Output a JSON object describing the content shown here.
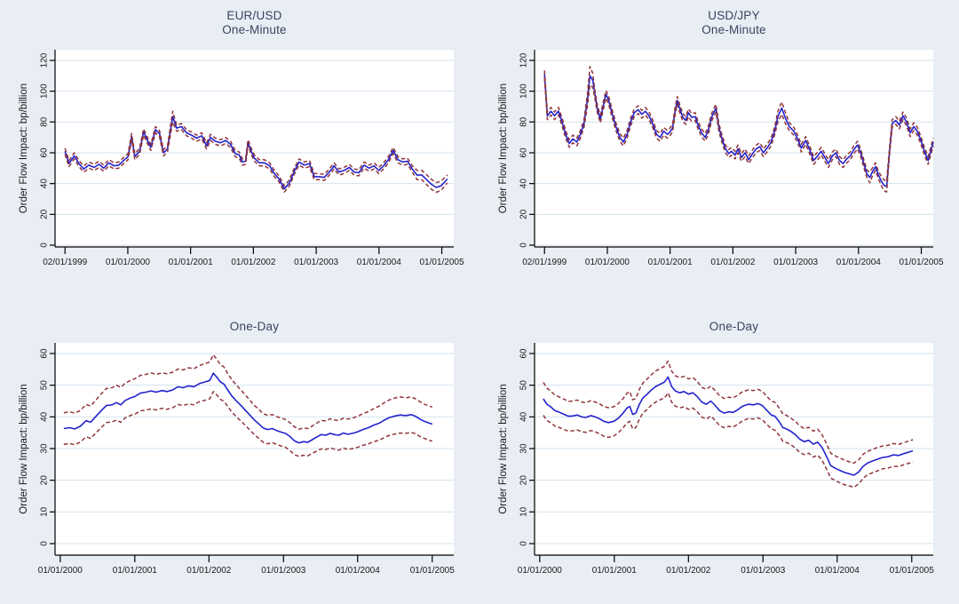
{
  "figure": {
    "name": "Order Flow Impact 2x2 time-series figure",
    "background_color": "#e8eef4",
    "plot_background_color": "#ffffff",
    "grid_color": "#d3e2ef",
    "axis_color": "#000000",
    "title_color": "#39455e",
    "tick_label_color": "#1a1a1a"
  },
  "chart_data": [
    {
      "id": "eur-usd-one-minute",
      "type": "line",
      "title": "EUR/USD",
      "subtitle": "One-Minute",
      "ylabel": "Order Flow Impact: bp/billion",
      "xlabel": "",
      "ylim": [
        0,
        120
      ],
      "yticks": [
        0,
        20,
        40,
        60,
        80,
        100,
        120
      ],
      "grid": "horizontal",
      "legend": "none",
      "xticks": {
        "fracs": [
          0.025,
          0.1825,
          0.34,
          0.4975,
          0.655,
          0.8125,
          0.97
        ],
        "labels": [
          "02/01/1999",
          "01/01/2000",
          "01/01/2001",
          "01/01/2002",
          "01/01/2003",
          "01/01/2004",
          "01/01/2005"
        ]
      },
      "estimate_color": "#2222cc",
      "estimate_style": "solid",
      "band_color": "#90353b",
      "band_style": "dashed",
      "x": [
        0.025,
        0.035,
        0.048,
        0.06,
        0.072,
        0.085,
        0.098,
        0.11,
        0.122,
        0.135,
        0.148,
        0.16,
        0.172,
        0.183,
        0.192,
        0.2,
        0.212,
        0.222,
        0.23,
        0.24,
        0.252,
        0.262,
        0.272,
        0.282,
        0.295,
        0.305,
        0.317,
        0.33,
        0.342,
        0.355,
        0.368,
        0.38,
        0.39,
        0.402,
        0.415,
        0.428,
        0.44,
        0.452,
        0.462,
        0.47,
        0.478,
        0.484,
        0.492,
        0.5,
        0.512,
        0.525,
        0.538,
        0.55,
        0.562,
        0.575,
        0.588,
        0.6,
        0.612,
        0.625,
        0.638,
        0.65,
        0.662,
        0.675,
        0.688,
        0.7,
        0.712,
        0.725,
        0.738,
        0.75,
        0.762,
        0.775,
        0.788,
        0.8,
        0.812,
        0.824,
        0.836,
        0.848,
        0.86,
        0.872,
        0.884,
        0.896,
        0.908,
        0.92,
        0.932,
        0.944,
        0.956,
        0.968,
        0.984
      ],
      "estimate": [
        61,
        53,
        58,
        53,
        49.5,
        52,
        50.5,
        52.5,
        50,
        53.5,
        51.5,
        52,
        55,
        57.5,
        70.5,
        57.5,
        61,
        73.5,
        69,
        63.5,
        75,
        72.5,
        60,
        62.5,
        83.5,
        76,
        77,
        73,
        71.5,
        69.5,
        71,
        64.5,
        70,
        67.5,
        66.5,
        68,
        65.5,
        59.5,
        58.5,
        54,
        54.5,
        66.5,
        61,
        56.5,
        53.5,
        53.5,
        51.5,
        46.5,
        43,
        36.5,
        40.5,
        48,
        54,
        52,
        53,
        44.5,
        44.5,
        44,
        47.5,
        51.5,
        47.5,
        48.5,
        50.5,
        47.5,
        47,
        52,
        50,
        51.5,
        48.5,
        51.5,
        55.5,
        61.5,
        55.5,
        54,
        54.5,
        49.5,
        45.5,
        45.5,
        42.5,
        39.5,
        37.5,
        38.5,
        43
      ],
      "ci_halfwidth": 2,
      "ci_overrides_by_x": {
        "0.295": 3.5,
        "0.908": 3,
        "0.92": 3,
        "0.932": 3.2,
        "0.944": 3.2,
        "0.956": 3.2,
        "0.968": 3,
        "0.984": 2.5
      }
    },
    {
      "id": "usd-jpy-one-minute",
      "type": "line",
      "title": "USD/JPY",
      "subtitle": "One-Minute",
      "ylabel": "Order Flow Impact: bp/billion",
      "xlabel": "",
      "ylim": [
        0,
        120
      ],
      "yticks": [
        0,
        20,
        40,
        60,
        80,
        100,
        120
      ],
      "grid": "horizontal",
      "legend": "none",
      "xticks": {
        "fracs": [
          0.025,
          0.1825,
          0.34,
          0.4975,
          0.655,
          0.8125,
          0.97
        ],
        "labels": [
          "02/01/1999",
          "01/01/2000",
          "01/01/2001",
          "01/01/2002",
          "01/01/2003",
          "01/01/2004",
          "01/01/2005"
        ]
      },
      "estimate_color": "#2222cc",
      "estimate_style": "solid",
      "band_color": "#90353b",
      "band_style": "dashed",
      "x": [
        0.025,
        0.032,
        0.041,
        0.05,
        0.06,
        0.069,
        0.078,
        0.087,
        0.096,
        0.106,
        0.115,
        0.124,
        0.133,
        0.139,
        0.146,
        0.152,
        0.158,
        0.165,
        0.172,
        0.179,
        0.186,
        0.195,
        0.204,
        0.214,
        0.223,
        0.232,
        0.241,
        0.25,
        0.26,
        0.269,
        0.278,
        0.287,
        0.296,
        0.306,
        0.315,
        0.324,
        0.333,
        0.338,
        0.346,
        0.352,
        0.358,
        0.365,
        0.372,
        0.379,
        0.386,
        0.394,
        0.403,
        0.41,
        0.419,
        0.428,
        0.435,
        0.444,
        0.451,
        0.455,
        0.462,
        0.469,
        0.478,
        0.487,
        0.494,
        0.503,
        0.51,
        0.519,
        0.528,
        0.537,
        0.547,
        0.556,
        0.565,
        0.574,
        0.583,
        0.593,
        0.602,
        0.611,
        0.62,
        0.63,
        0.639,
        0.65,
        0.66,
        0.669,
        0.68,
        0.69,
        0.7,
        0.71,
        0.719,
        0.728,
        0.737,
        0.747,
        0.756,
        0.765,
        0.774,
        0.783,
        0.792,
        0.801,
        0.81,
        0.818,
        0.827,
        0.834,
        0.841,
        0.848,
        0.855,
        0.862,
        0.869,
        0.876,
        0.883,
        0.89,
        0.897,
        0.906,
        0.915,
        0.924,
        0.933,
        0.942,
        0.951,
        0.96,
        0.969,
        0.978,
        0.987,
        1.0
      ],
      "estimate": [
        111,
        84,
        87,
        84,
        87,
        80,
        72,
        66,
        69,
        67,
        72,
        79,
        95,
        110,
        107,
        97,
        88,
        82,
        90,
        98,
        94,
        85,
        77,
        70,
        67,
        72,
        80,
        86,
        88,
        85,
        87,
        84,
        79,
        72,
        70,
        74,
        72,
        73,
        76,
        86,
        94,
        88,
        83,
        81,
        86,
        83,
        83.5,
        78,
        73,
        70,
        74,
        83,
        87,
        89,
        77,
        70,
        63,
        59.5,
        61,
        58.5,
        62.5,
        57,
        60,
        55.5,
        59.5,
        62.5,
        64,
        60,
        63,
        67,
        74,
        84,
        89,
        82,
        77,
        74,
        69,
        63,
        68,
        62,
        55,
        58,
        61,
        57,
        53,
        58,
        60,
        55,
        53,
        56,
        58,
        62,
        65,
        60,
        52,
        46,
        44,
        48,
        51,
        46,
        42,
        39,
        38,
        60,
        79,
        81,
        78,
        84,
        80,
        73,
        77,
        74,
        68,
        61,
        55,
        67
      ],
      "ci_halfwidth": 2.5,
      "ci_overrides_by_x": {
        "0.133": 4,
        "0.139": 6,
        "0.146": 4.5,
        "0.611": 3.5,
        "0.62": 4,
        "0.63": 3.5,
        "0.841": 3.5,
        "0.869": 3,
        "0.876": 3.5,
        "0.883": 3.5
      }
    },
    {
      "id": "eur-usd-one-day",
      "type": "line",
      "title": "One-Day",
      "subtitle": null,
      "ylabel": "Order Flow Impact: bp/billion",
      "xlabel": "",
      "ylim": [
        0,
        60
      ],
      "yticks": [
        0,
        10,
        20,
        30,
        40,
        50,
        60
      ],
      "grid": "horizontal",
      "legend": "none",
      "xticks": {
        "fracs": [
          0.013,
          0.2,
          0.386,
          0.573,
          0.759,
          0.946
        ],
        "labels": [
          "01/01/2000",
          "01/01/2001",
          "01/01/2002",
          "01/01/2003",
          "01/01/2004",
          "01/01/2005"
        ]
      },
      "estimate_color": "#2222cc",
      "estimate_style": "solid",
      "band_color": "#90353b",
      "band_style": "dashed",
      "x": [
        0.022,
        0.036,
        0.049,
        0.063,
        0.078,
        0.089,
        0.103,
        0.116,
        0.129,
        0.143,
        0.154,
        0.165,
        0.176,
        0.19,
        0.201,
        0.214,
        0.228,
        0.241,
        0.254,
        0.268,
        0.281,
        0.295,
        0.308,
        0.321,
        0.335,
        0.348,
        0.362,
        0.375,
        0.388,
        0.397,
        0.406,
        0.415,
        0.424,
        0.433,
        0.444,
        0.455,
        0.467,
        0.478,
        0.489,
        0.5,
        0.511,
        0.522,
        0.533,
        0.545,
        0.556,
        0.567,
        0.578,
        0.589,
        0.6,
        0.612,
        0.623,
        0.634,
        0.645,
        0.656,
        0.667,
        0.679,
        0.69,
        0.701,
        0.712,
        0.723,
        0.734,
        0.746,
        0.759,
        0.772,
        0.786,
        0.799,
        0.813,
        0.826,
        0.839,
        0.853,
        0.866,
        0.879,
        0.893,
        0.904,
        0.915,
        0.926,
        0.935,
        0.946
      ],
      "estimate": [
        36.3,
        36.6,
        36.2,
        37,
        38.8,
        38.3,
        40.2,
        42,
        43.6,
        43.8,
        44.5,
        43.8,
        45.2,
        46,
        46.5,
        47.5,
        47.8,
        48.2,
        47.8,
        48.3,
        48,
        48.5,
        49.5,
        49.2,
        49.8,
        49.5,
        50.5,
        51,
        51.5,
        53.8,
        52.5,
        51,
        50.3,
        48.5,
        46.5,
        45,
        43.5,
        42,
        40.5,
        39,
        37.8,
        36.5,
        36,
        36.3,
        35.7,
        35.2,
        34.8,
        33.8,
        32.5,
        31.8,
        32.2,
        32,
        32.8,
        33.6,
        34.4,
        34.2,
        34.8,
        34.4,
        34.2,
        34.9,
        34.5,
        34.8,
        35.3,
        36,
        36.6,
        37.4,
        38,
        39,
        39.8,
        40.3,
        40.6,
        40.4,
        40.7,
        40.2,
        39.3,
        38.6,
        38.2,
        37.7
      ],
      "ci_halfwidth": [
        5,
        5,
        5,
        5,
        5.1,
        5.1,
        5.2,
        5.3,
        5.4,
        5.4,
        5.5,
        5.5,
        5.5,
        5.5,
        5.6,
        5.6,
        5.6,
        5.7,
        5.6,
        5.6,
        5.6,
        5.6,
        5.6,
        5.6,
        5.7,
        5.7,
        5.7,
        5.8,
        5.8,
        5.8,
        5.6,
        5.5,
        5.4,
        5.2,
        5.1,
        5,
        4.9,
        4.8,
        4.7,
        4.6,
        4.6,
        4.5,
        4.5,
        4.4,
        4.4,
        4.4,
        4.4,
        4.4,
        4.4,
        4.3,
        4.3,
        4.3,
        4.3,
        4.4,
        4.5,
        4.5,
        4.6,
        4.6,
        4.7,
        4.7,
        4.8,
        4.8,
        4.9,
        5,
        5.1,
        5.2,
        5.4,
        5.5,
        5.6,
        5.7,
        5.7,
        5.6,
        5.6,
        5.5,
        5.5,
        5.4,
        5.4,
        5.4
      ]
    },
    {
      "id": "usd-jpy-one-day",
      "type": "line",
      "title": "One-Day",
      "subtitle": null,
      "ylabel": "Order Flow Impact: bp/billion",
      "xlabel": "",
      "ylim": [
        0,
        60
      ],
      "yticks": [
        0,
        10,
        20,
        30,
        40,
        50,
        60
      ],
      "grid": "horizontal",
      "legend": "none",
      "xticks": {
        "fracs": [
          0.013,
          0.2,
          0.386,
          0.573,
          0.759,
          0.946
        ],
        "labels": [
          "01/01/2000",
          "01/01/2001",
          "01/01/2002",
          "01/01/2003",
          "01/01/2004",
          "01/01/2005"
        ]
      },
      "estimate_color": "#2222cc",
      "estimate_style": "solid",
      "band_color": "#90353b",
      "band_style": "dashed",
      "x": [
        0.022,
        0.031,
        0.04,
        0.051,
        0.063,
        0.074,
        0.085,
        0.096,
        0.107,
        0.118,
        0.129,
        0.141,
        0.152,
        0.163,
        0.174,
        0.185,
        0.199,
        0.21,
        0.221,
        0.232,
        0.239,
        0.246,
        0.254,
        0.263,
        0.272,
        0.281,
        0.292,
        0.304,
        0.315,
        0.326,
        0.335,
        0.344,
        0.353,
        0.364,
        0.375,
        0.386,
        0.397,
        0.408,
        0.42,
        0.431,
        0.442,
        0.453,
        0.464,
        0.475,
        0.487,
        0.498,
        0.509,
        0.522,
        0.536,
        0.549,
        0.56,
        0.571,
        0.583,
        0.594,
        0.603,
        0.614,
        0.623,
        0.632,
        0.643,
        0.654,
        0.665,
        0.676,
        0.688,
        0.699,
        0.71,
        0.721,
        0.732,
        0.743,
        0.757,
        0.768,
        0.779,
        0.79,
        0.801,
        0.813,
        0.824,
        0.835,
        0.846,
        0.859,
        0.873,
        0.886,
        0.9,
        0.913,
        0.926,
        0.937,
        0.949
      ],
      "estimate": [
        45.7,
        44,
        43.2,
        42,
        41.4,
        40.8,
        40.2,
        40.3,
        40.6,
        40,
        39.8,
        40.4,
        40,
        39.4,
        38.6,
        38.2,
        38.6,
        39.6,
        41,
        42.8,
        43.3,
        40.8,
        41.2,
        44,
        46,
        47,
        48.4,
        49.6,
        50.3,
        51,
        52.6,
        49.5,
        48.2,
        47.6,
        48,
        47.2,
        47.6,
        46.4,
        44.6,
        44,
        45,
        43.6,
        42,
        41.2,
        41.6,
        41.4,
        42.2,
        43.4,
        44,
        43.8,
        44.2,
        43.6,
        42,
        40.6,
        40.2,
        38.4,
        36.6,
        36.2,
        35.4,
        34.4,
        33,
        32.2,
        32.6,
        31.4,
        32,
        30.4,
        27.6,
        24.6,
        23.6,
        23,
        22.4,
        22,
        21.6,
        22.6,
        24.4,
        25.4,
        26,
        26.6,
        27.2,
        27.4,
        28,
        27.8,
        28.4,
        28.8,
        29.3
      ],
      "ci_halfwidth": [
        5.2,
        5.1,
        5,
        4.9,
        4.8,
        4.8,
        4.7,
        4.7,
        4.7,
        4.7,
        4.7,
        4.7,
        4.7,
        4.7,
        4.7,
        4.7,
        4.6,
        4.6,
        4.6,
        4.7,
        4.7,
        4.6,
        4.6,
        4.7,
        4.7,
        4.8,
        4.8,
        4.9,
        4.9,
        5,
        5,
        4.9,
        4.8,
        4.8,
        4.8,
        4.8,
        4.8,
        4.8,
        4.7,
        4.7,
        4.7,
        4.7,
        4.7,
        4.6,
        4.6,
        4.6,
        4.6,
        4.6,
        4.5,
        4.5,
        4.5,
        4.5,
        4.4,
        4.4,
        4.4,
        4.3,
        4.3,
        4.3,
        4.2,
        4.2,
        4.2,
        4.1,
        4.1,
        4.1,
        4.1,
        4,
        4,
        3.9,
        3.9,
        3.9,
        3.9,
        3.8,
        3.8,
        3.8,
        3.8,
        3.7,
        3.7,
        3.7,
        3.6,
        3.6,
        3.6,
        3.5,
        3.5,
        3.5,
        3.5
      ]
    }
  ]
}
